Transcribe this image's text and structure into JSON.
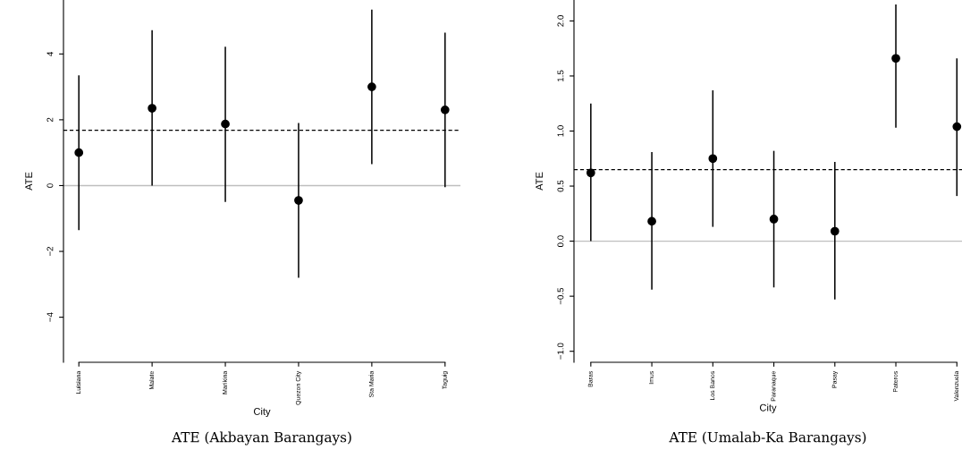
{
  "chart_data": [
    {
      "type": "scatter",
      "title": "ATE (Akbayan Barangays)",
      "xlabel": "City",
      "ylabel": "ATE",
      "categories": [
        "Luisiana",
        "Malate",
        "Marikina",
        "Quezon City",
        "Sta Maria",
        "Taguig"
      ],
      "series": [
        {
          "color": "#000000",
          "values": [
            1.0,
            2.35,
            1.87,
            -0.45,
            3.0,
            2.3
          ],
          "errors": [
            [
              -1.35,
              3.35
            ],
            [
              0.0,
              4.72
            ],
            [
              -0.5,
              4.22
            ],
            [
              -2.8,
              1.9
            ],
            [
              0.65,
              5.35
            ],
            [
              -0.05,
              4.65
            ]
          ]
        }
      ],
      "ylim": [
        -5.37,
        5.64
      ],
      "yticks": [
        {
          "value": -4,
          "label": "−4"
        },
        {
          "value": -2,
          "label": "−2"
        },
        0,
        2,
        4
      ],
      "ref_lines": [
        {
          "axis": "y",
          "value": 0,
          "color": "#bebebe",
          "line_style": "solid"
        },
        {
          "axis": "y",
          "value": 1.68,
          "color": "#000000",
          "line_style": "dashed"
        }
      ],
      "marker": "circle",
      "grid": false,
      "legend": false
    },
    {
      "type": "scatter",
      "title": "ATE (Umalab-Ka Barangays)",
      "xlabel": "City",
      "ylabel": "ATE",
      "categories": [
        "Baras",
        "Imus",
        "Los Banos",
        "Paranaque",
        "Pasay",
        "Pateros",
        "Valenzuela"
      ],
      "series": [
        {
          "color": "#000000",
          "values": [
            0.62,
            0.18,
            0.75,
            0.2,
            0.09,
            1.66,
            1.04
          ],
          "errors": [
            [
              0.0,
              1.25
            ],
            [
              -0.44,
              0.81
            ],
            [
              0.13,
              1.37
            ],
            [
              -0.42,
              0.82
            ],
            [
              -0.53,
              0.72
            ],
            [
              1.03,
              2.15
            ],
            [
              0.41,
              1.66
            ]
          ]
        }
      ],
      "ylim": [
        -1.1,
        2.19
      ],
      "yticks": [
        {
          "value": -1.0,
          "label": "−1.0"
        },
        {
          "value": -0.5,
          "label": "−0.5"
        },
        {
          "value": 0.0,
          "label": "0.0"
        },
        {
          "value": 0.5,
          "label": "0.5"
        },
        {
          "value": 1.0,
          "label": "1.0"
        },
        {
          "value": 1.5,
          "label": "1.5"
        },
        {
          "value": 2.0,
          "label": "2.0"
        }
      ],
      "ref_lines": [
        {
          "axis": "y",
          "value": 0,
          "color": "#bebebe",
          "line_style": "solid"
        },
        {
          "axis": "y",
          "value": 0.65,
          "color": "#000000",
          "line_style": "dashed"
        }
      ],
      "marker": "circle",
      "grid": false,
      "legend": false
    }
  ]
}
